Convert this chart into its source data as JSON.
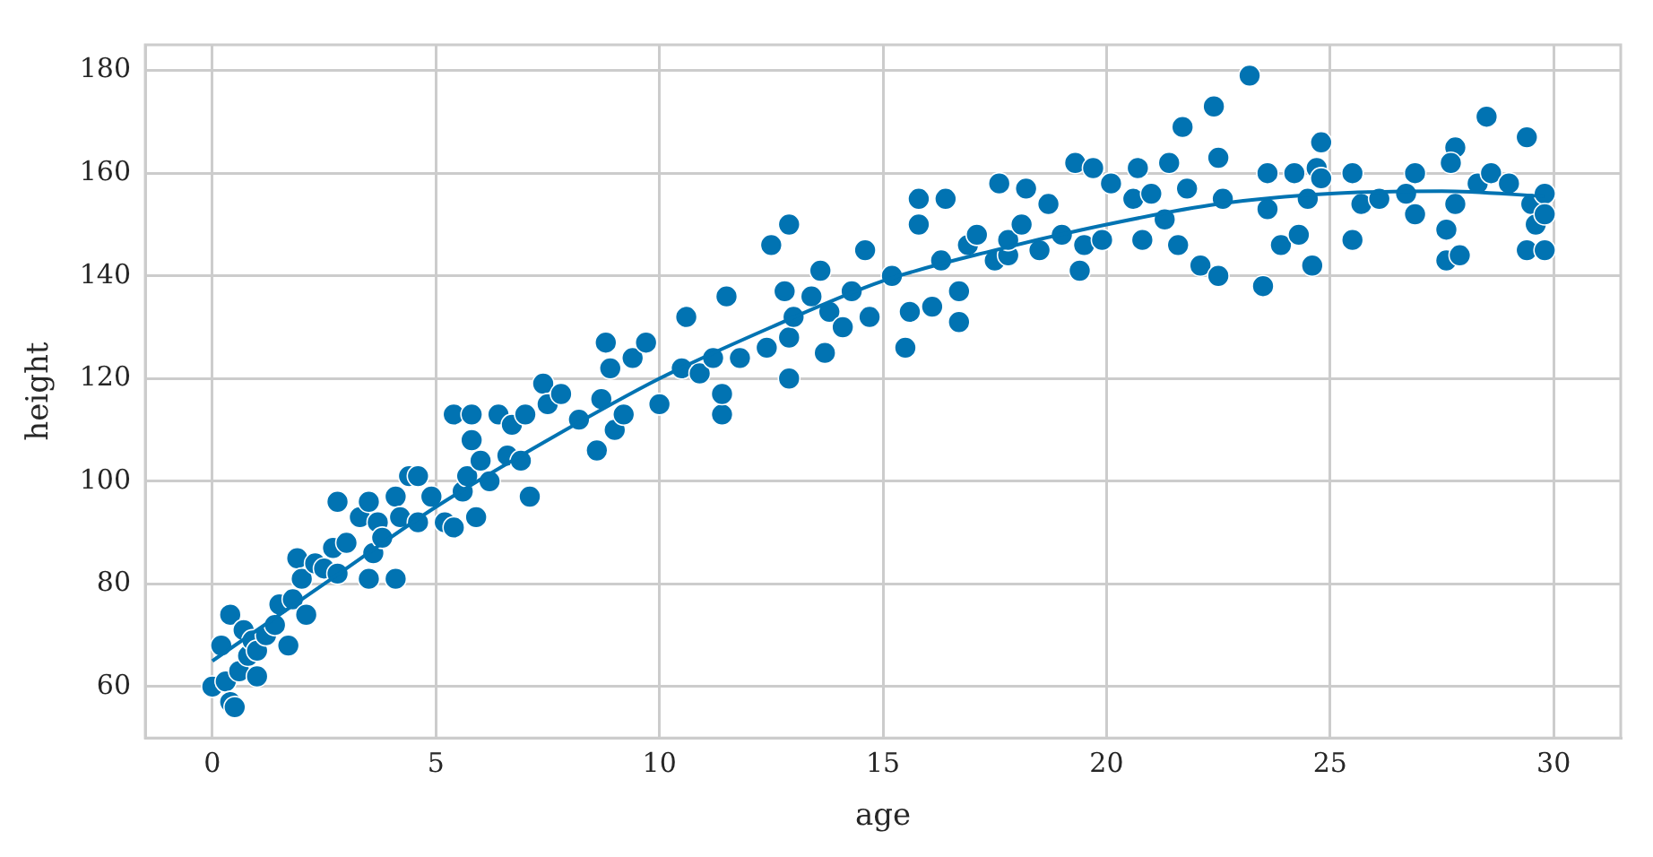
{
  "chart_data": {
    "type": "scatter",
    "xlabel": "age",
    "ylabel": "height",
    "xlim": [
      -1.5,
      31.5
    ],
    "xticks": [
      0,
      5,
      10,
      15,
      20,
      25,
      30
    ],
    "ylim": [
      50,
      185
    ],
    "yticks": [
      60,
      80,
      100,
      120,
      140,
      160,
      180
    ],
    "grid": true,
    "legend": false,
    "marker": "circle",
    "series": [
      {
        "type": "scatter",
        "color": "#0173b2",
        "x": [
          0,
          0.2,
          0.4,
          0.3,
          0.4,
          0.5,
          0.6,
          0.7,
          0.8,
          0.9,
          1,
          1,
          1.2,
          1.4,
          1.5,
          1.7,
          1.8,
          1.9,
          2,
          2.1,
          2.3,
          2.5,
          2.7,
          2.8,
          2.8,
          3,
          3.3,
          3.5,
          3.5,
          3.6,
          3.7,
          3.8,
          4.1,
          4.1,
          4.2,
          4.4,
          4.6,
          4.6,
          4.9,
          5.2,
          5.4,
          5.4,
          5.6,
          5.7,
          5.8,
          5.8,
          5.9,
          6,
          6.2,
          6.4,
          6.6,
          6.7,
          6.9,
          7,
          7.1,
          7.4,
          7.5,
          7.8,
          8.2,
          8.6,
          8.7,
          8.8,
          8.9,
          9,
          9.2,
          9.4,
          9.7,
          10,
          10.5,
          10.6,
          10.9,
          11.2,
          11.4,
          11.4,
          11.5,
          11.8,
          12.4,
          12.5,
          12.8,
          12.9,
          12.9,
          12.9,
          13,
          13.4,
          13.6,
          13.7,
          13.8,
          14.1,
          14.3,
          14.6,
          14.7,
          15.2,
          15.5,
          15.6,
          15.8,
          15.8,
          16.1,
          16.3,
          16.4,
          16.7,
          16.7,
          16.9,
          17.1,
          17.5,
          17.6,
          17.8,
          17.8,
          18.1,
          18.2,
          18.5,
          18.7,
          19,
          19.3,
          19.4,
          19.5,
          19.7,
          19.9,
          20.1,
          20.6,
          20.7,
          20.8,
          21,
          21.3,
          21.4,
          21.6,
          21.7,
          21.8,
          22.1,
          22.4,
          22.5,
          22.5,
          22.6,
          23.2,
          23.5,
          23.6,
          23.6,
          23.9,
          24.2,
          24.3,
          24.5,
          24.6,
          24.7,
          24.8,
          24.8,
          25.5,
          25.5,
          25.7,
          26.1,
          26.7,
          26.9,
          26.9,
          27.6,
          27.6,
          27.8,
          27.7,
          27.8,
          27.9,
          28.3,
          28.5,
          28.6,
          29,
          29.4,
          29.4,
          29.5,
          29.6,
          29.8,
          29.8,
          29.8
        ],
        "values": [
          60,
          68,
          74,
          61,
          57,
          56,
          63,
          71,
          66,
          69,
          62,
          67,
          70,
          72,
          76,
          68,
          77,
          85,
          81,
          74,
          84,
          83,
          87,
          96,
          82,
          88,
          93,
          96,
          81,
          86,
          92,
          89,
          81,
          97,
          93,
          101,
          92,
          101,
          97,
          92,
          113,
          91,
          98,
          101,
          108,
          113,
          93,
          104,
          100,
          113,
          105,
          111,
          104,
          113,
          97,
          119,
          115,
          117,
          112,
          106,
          116,
          127,
          122,
          110,
          113,
          124,
          127,
          115,
          122,
          132,
          121,
          124,
          113,
          117,
          136,
          124,
          126,
          146,
          137,
          150,
          120,
          128,
          132,
          136,
          141,
          125,
          133,
          130,
          137,
          145,
          132,
          140,
          126,
          133,
          150,
          155,
          134,
          143,
          155,
          131,
          137,
          146,
          148,
          143,
          158,
          144,
          147,
          150,
          157,
          145,
          154,
          148,
          162,
          141,
          146,
          161,
          147,
          158,
          155,
          161,
          147,
          156,
          151,
          162,
          146,
          169,
          157,
          142,
          173,
          140,
          163,
          155,
          179,
          138,
          160,
          153,
          146,
          160,
          148,
          155,
          142,
          161,
          166,
          159,
          147,
          160,
          154,
          155,
          156,
          152,
          160,
          143,
          149,
          165,
          162,
          154,
          144,
          158,
          171,
          160,
          158,
          167,
          145,
          154,
          150,
          145,
          156,
          152
        ]
      },
      {
        "type": "line",
        "color": "#0173b2",
        "marker": "none",
        "x": [
          0,
          2.5,
          5,
          7.5,
          10,
          12.5,
          15,
          17.5,
          20,
          22.5,
          25,
          27.5,
          29.8
        ],
        "values": [
          65,
          80,
          95,
          108,
          120,
          130,
          139,
          145,
          150,
          154,
          156,
          156.5,
          155.5
        ]
      }
    ]
  }
}
